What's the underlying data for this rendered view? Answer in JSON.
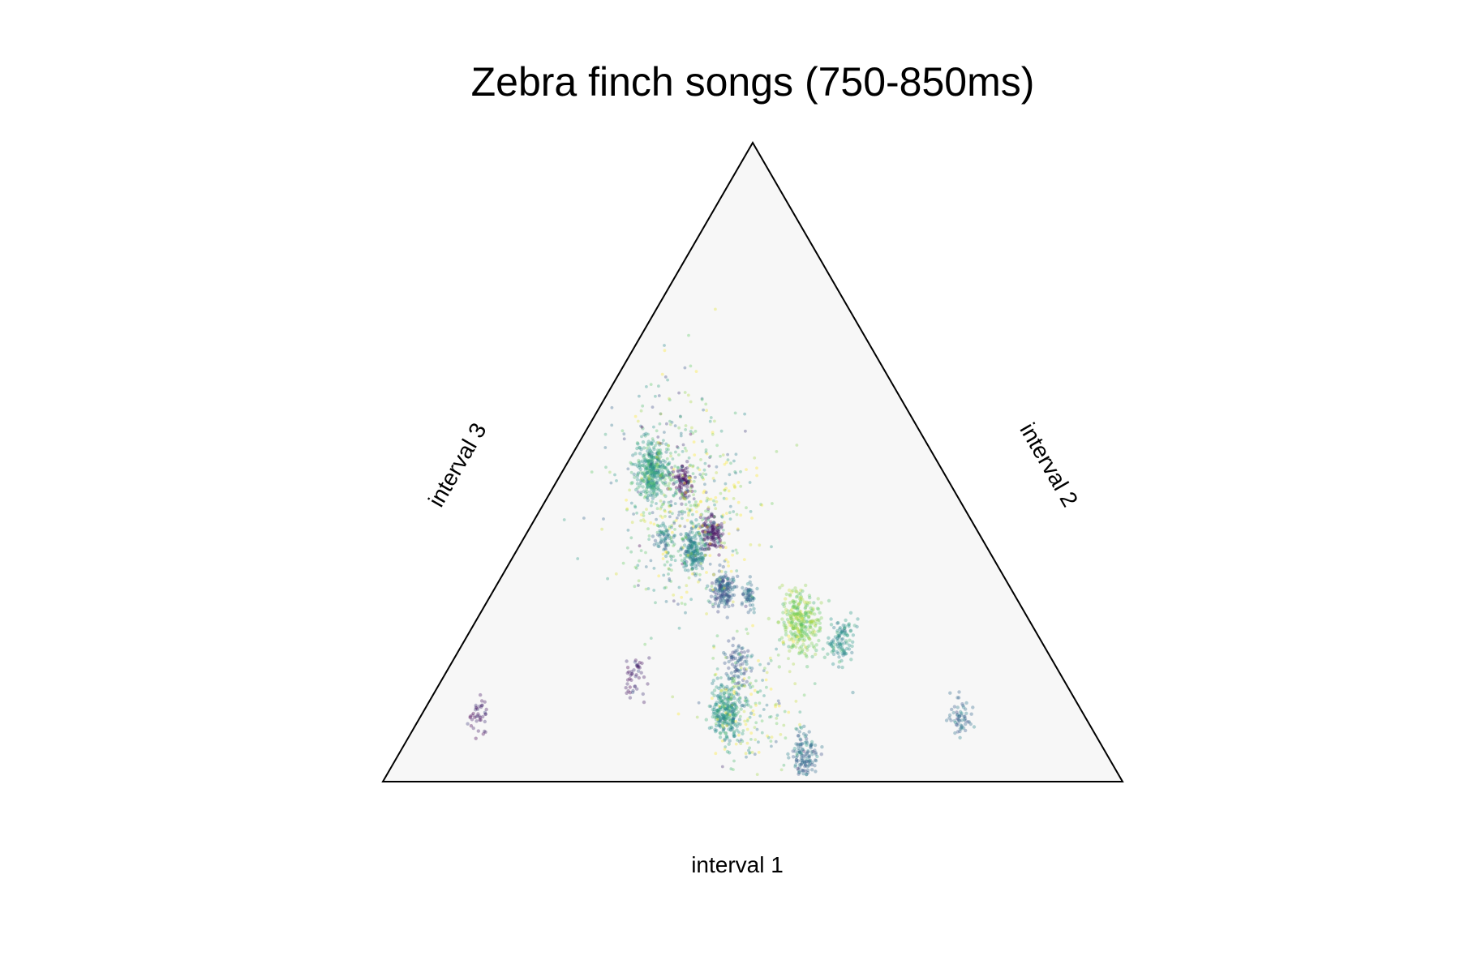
{
  "chart_data": {
    "type": "scatter",
    "subtype": "ternary",
    "title": "Zebra finch songs (750-850ms)",
    "axes": {
      "interval1": "interval 1",
      "interval2": "interval 2",
      "interval3": "interval 3"
    },
    "background_color": "#f7f7f7",
    "frame_color": "#000000",
    "marker_opacity": 0.35,
    "colormap": "viridis",
    "colormap_stops": [
      "#440154",
      "#3b528b",
      "#21918c",
      "#5ec962",
      "#fde725"
    ],
    "grid": false,
    "legend": "none",
    "point_count": 3217,
    "sample_clusters": [
      {
        "interval1": 0.43,
        "interval2": 0.19,
        "interval3": 0.38,
        "n": 48,
        "spread": 0.008,
        "color_value": 0.4
      },
      {
        "interval1": 0.17,
        "interval2": 0.73,
        "interval3": 0.1,
        "n": 60,
        "spread": 0.01,
        "color_value": 0.35
      },
      {
        "interval1": 0.82,
        "interval2": 0.08,
        "interval3": 0.1,
        "n": 40,
        "spread": 0.01,
        "color_value": 0.08
      },
      {
        "interval1": 0.39,
        "interval2": 0.12,
        "interval3": 0.49,
        "n": 320,
        "spread": 0.015,
        "color_value": 0.55
      },
      {
        "interval1": 0.4,
        "interval2": 0.24,
        "interval3": 0.36,
        "n": 180,
        "spread": 0.012,
        "color_value": 0.45
      },
      {
        "interval1": 0.39,
        "interval2": 0.31,
        "interval3": 0.3,
        "n": 160,
        "spread": 0.01,
        "color_value": 0.3
      },
      {
        "interval1": 0.31,
        "interval2": 0.44,
        "interval3": 0.25,
        "n": 310,
        "spread": 0.018,
        "color_value": 0.8
      },
      {
        "interval1": 0.41,
        "interval2": 0.55,
        "interval3": 0.04,
        "n": 130,
        "spread": 0.013,
        "color_value": 0.35
      },
      {
        "interval1": 0.36,
        "interval2": 0.25,
        "interval3": 0.39,
        "n": 130,
        "spread": 0.01,
        "color_value": 0.05
      },
      {
        "interval1": 0.36,
        "interval2": 0.17,
        "interval3": 0.47,
        "n": 90,
        "spread": 0.008,
        "color_value": 0.05
      },
      {
        "interval1": 0.36,
        "interval2": 0.35,
        "interval3": 0.29,
        "n": 55,
        "spread": 0.007,
        "color_value": 0.35
      },
      {
        "interval1": 0.27,
        "interval2": 0.51,
        "interval3": 0.22,
        "n": 110,
        "spread": 0.013,
        "color_value": 0.5
      },
      {
        "interval1": 0.48,
        "interval2": 0.41,
        "interval3": 0.11,
        "n": 260,
        "spread": 0.015,
        "color_value": 0.52
      },
      {
        "interval1": 0.43,
        "interval2": 0.39,
        "interval3": 0.18,
        "n": 80,
        "spread": 0.012,
        "color_value": 0.3
      },
      {
        "interval1": 0.38,
        "interval2": 0.17,
        "interval3": 0.45,
        "n": 420,
        "spread": 0.06,
        "color_value": 0.6
      },
      {
        "interval1": 0.36,
        "interval2": 0.23,
        "interval3": 0.41,
        "n": 180,
        "spread": 0.05,
        "color_value": 0.85
      },
      {
        "interval1": 0.44,
        "interval2": 0.44,
        "interval3": 0.12,
        "n": 200,
        "spread": 0.045,
        "color_value": 0.75
      },
      {
        "interval1": 0.58,
        "interval2": 0.26,
        "interval3": 0.16,
        "n": 45,
        "spread": 0.012,
        "color_value": 0.1
      }
    ]
  }
}
